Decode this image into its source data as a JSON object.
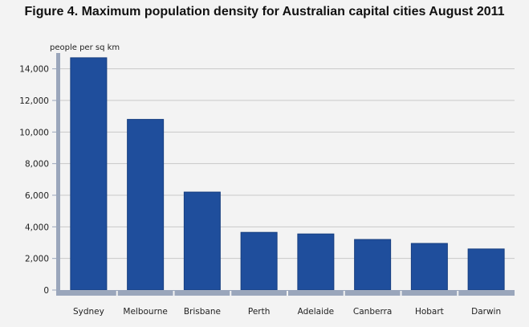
{
  "chart_data": {
    "type": "bar",
    "title": "Figure 4. Maximum population density for Australian capital cities August 2011",
    "ylabel": "people per sq km",
    "xlabel": "",
    "categories": [
      "Sydney",
      "Melbourne",
      "Brisbane",
      "Perth",
      "Adelaide",
      "Canberra",
      "Hobart",
      "Darwin"
    ],
    "values": [
      14700,
      10800,
      6200,
      3650,
      3550,
      3200,
      2950,
      2600
    ],
    "ylim": [
      0,
      15000
    ],
    "yticks": [
      0,
      2000,
      4000,
      6000,
      8000,
      10000,
      12000,
      14000
    ],
    "ytick_labels": [
      "0",
      "2,000",
      "4,000",
      "6,000",
      "8,000",
      "10,000",
      "12,000",
      "14,000"
    ],
    "grid": true,
    "colors": {
      "bar": "#1f4e9c",
      "bar_edge": "#173f80",
      "axis": "#9aa6bb",
      "grid": "#c8c8c8",
      "background": "#f3f3f3"
    }
  }
}
